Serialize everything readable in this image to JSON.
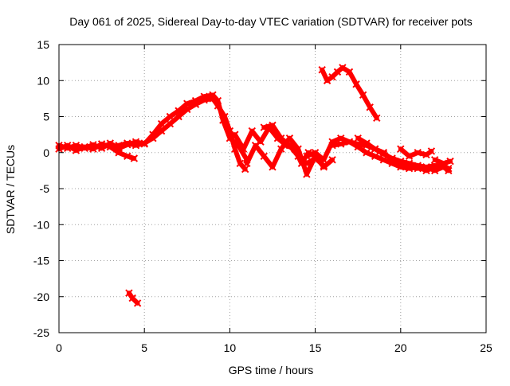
{
  "chart_data": {
    "type": "scatter",
    "title": "Day 061 of 2025, Sidereal Day-to-day VTEC variation (SDTVAR) for receiver pots",
    "xlabel": "GPS time / hours",
    "ylabel": "SDTVAR / TECUs",
    "xlim": [
      0,
      25
    ],
    "ylim": [
      -25,
      15
    ],
    "xticks": [
      0,
      5,
      10,
      15,
      20,
      25
    ],
    "yticks": [
      -25,
      -20,
      -15,
      -10,
      -5,
      0,
      5,
      10,
      15
    ],
    "grid": true,
    "series": [
      {
        "name": "main-trace-a",
        "color": "#ff0000",
        "x": [
          0.0,
          0.5,
          1.0,
          1.5,
          2.0,
          2.5,
          3.0,
          3.5,
          4.0,
          4.5,
          5.0,
          5.5,
          6.0,
          6.5,
          7.0,
          7.5,
          8.0,
          8.5,
          9.0,
          9.3,
          9.7,
          10.0,
          10.3,
          10.6,
          10.9
        ],
        "y": [
          0.5,
          1.0,
          0.3,
          0.8,
          0.5,
          1.2,
          0.8,
          1.0,
          1.3,
          1.0,
          1.3,
          2.0,
          3.0,
          4.0,
          5.0,
          6.0,
          6.7,
          7.3,
          7.5,
          6.5,
          5.0,
          3.0,
          0.5,
          -1.5,
          -2.3
        ]
      },
      {
        "name": "main-trace-b",
        "color": "#ff0000",
        "x": [
          0.0,
          0.5,
          1.0,
          1.5,
          2.0,
          2.5,
          3.0,
          3.5,
          4.0,
          4.5,
          5.0,
          5.5,
          6.0,
          6.5,
          7.0,
          7.5,
          8.0,
          8.5,
          9.0,
          9.3,
          9.6,
          10.0,
          10.5,
          11.0
        ],
        "y": [
          1.0,
          0.6,
          1.0,
          0.6,
          1.1,
          0.6,
          1.3,
          0.6,
          1.1,
          1.5,
          1.2,
          2.5,
          4.0,
          5.0,
          5.8,
          6.8,
          7.2,
          7.8,
          8.0,
          7.2,
          4.5,
          2.0,
          1.0,
          -1.0
        ]
      },
      {
        "name": "dip-branch",
        "color": "#ff0000",
        "x": [
          3.0,
          3.5,
          4.0,
          4.4
        ],
        "y": [
          0.8,
          0.0,
          -0.5,
          -0.8
        ]
      },
      {
        "name": "mid-trace-a",
        "color": "#ff0000",
        "x": [
          10.3,
          10.8,
          11.3,
          11.8,
          12.3,
          12.8,
          13.3,
          13.8,
          14.2,
          14.6,
          15.0,
          15.5,
          16.0
        ],
        "y": [
          2.5,
          0.5,
          3.0,
          1.5,
          3.5,
          2.0,
          1.0,
          0.5,
          -1.5,
          0.0,
          -0.5,
          -2.0,
          -1.0
        ]
      },
      {
        "name": "mid-trace-b",
        "color": "#ff0000",
        "x": [
          11.0,
          11.5,
          12.0,
          12.5,
          13.0,
          13.5,
          14.0,
          14.5,
          15.0
        ],
        "y": [
          -1.5,
          1.0,
          -0.5,
          -2.0,
          0.5,
          2.0,
          0.5,
          -3.0,
          -0.5
        ]
      },
      {
        "name": "mid-trace-c",
        "color": "#ff0000",
        "x": [
          12.0,
          12.5,
          13.0,
          13.5,
          14.0,
          14.5,
          15.0,
          15.5
        ],
        "y": [
          3.5,
          3.8,
          2.0,
          1.0,
          -0.5,
          -1.5,
          -0.8,
          -1.8
        ]
      },
      {
        "name": "late-trace-a",
        "color": "#ff0000",
        "x": [
          14.5,
          15.0,
          15.5,
          16.0,
          16.5,
          17.0,
          17.5,
          18.0,
          18.5,
          19.0,
          19.5,
          20.0,
          20.5,
          21.0,
          21.5,
          22.0,
          22.5,
          22.8
        ],
        "y": [
          -0.5,
          0.0,
          -1.0,
          1.5,
          2.0,
          1.5,
          0.8,
          0.0,
          -0.5,
          -1.0,
          -1.5,
          -2.0,
          -2.2,
          -2.0,
          -2.5,
          -2.0,
          -1.8,
          -2.2
        ]
      },
      {
        "name": "late-trace-b",
        "color": "#ff0000",
        "x": [
          16.0,
          16.5,
          17.0,
          17.5,
          18.0,
          18.5,
          19.0,
          19.5,
          20.0,
          20.5,
          21.0,
          21.5,
          22.0,
          22.5
        ],
        "y": [
          1.0,
          1.2,
          1.5,
          1.2,
          1.0,
          0.5,
          0.0,
          -1.0,
          -1.5,
          -2.0,
          -2.2,
          -2.0,
          -2.5,
          -2.0
        ]
      },
      {
        "name": "late-trace-c",
        "color": "#ff0000",
        "x": [
          17.5,
          18.0,
          18.5,
          19.0,
          19.5,
          20.0,
          20.5,
          21.0,
          21.5,
          22.0,
          22.5,
          22.8
        ],
        "y": [
          2.0,
          1.3,
          0.5,
          -0.2,
          -0.8,
          -1.2,
          -1.5,
          -1.8,
          -2.0,
          -1.8,
          -2.0,
          -2.5
        ]
      },
      {
        "name": "upper-right-arc",
        "color": "#ff0000",
        "x": [
          15.4,
          15.7,
          16.0,
          16.3,
          16.6,
          17.0,
          17.4,
          17.8,
          18.2,
          18.6
        ],
        "y": [
          11.5,
          10.0,
          10.5,
          11.2,
          11.8,
          11.2,
          9.5,
          8.0,
          6.3,
          4.8
        ]
      },
      {
        "name": "right-small-segment",
        "color": "#ff0000",
        "x": [
          20.0,
          20.5,
          21.0,
          21.5,
          21.8
        ],
        "y": [
          0.5,
          -0.5,
          0.0,
          -0.3,
          0.2
        ]
      },
      {
        "name": "right-end-segment",
        "color": "#ff0000",
        "x": [
          22.0,
          22.5,
          22.9
        ],
        "y": [
          -1.0,
          -1.5,
          -1.2
        ]
      },
      {
        "name": "low-outlier-segment",
        "color": "#ff0000",
        "x": [
          4.1,
          4.3,
          4.6
        ],
        "y": [
          -19.5,
          -20.2,
          -20.9
        ]
      }
    ]
  }
}
